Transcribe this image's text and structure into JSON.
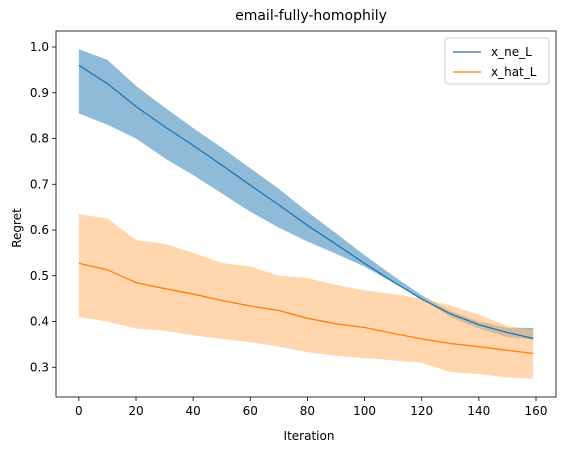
{
  "chart_data": {
    "type": "line",
    "title": "email-fully-homophily",
    "xlabel": "Iteration",
    "ylabel": "Regret",
    "xlim": [
      -8,
      167
    ],
    "ylim": [
      0.235,
      1.035
    ],
    "xticks": [
      0,
      20,
      40,
      60,
      80,
      100,
      120,
      140,
      160
    ],
    "yticks": [
      0.3,
      0.4,
      0.5,
      0.6,
      0.7,
      0.8,
      0.9,
      1.0
    ],
    "grid": false,
    "legend_position": "top-right",
    "series": [
      {
        "name": "x_ne_L",
        "color": "#1f77b4",
        "band_color": "#1f77b4",
        "x": [
          0,
          10,
          20,
          30,
          40,
          50,
          60,
          70,
          80,
          90,
          100,
          110,
          120,
          130,
          140,
          150,
          159
        ],
        "y": [
          0.96,
          0.92,
          0.87,
          0.826,
          0.785,
          0.742,
          0.698,
          0.655,
          0.61,
          0.569,
          0.527,
          0.487,
          0.449,
          0.417,
          0.393,
          0.376,
          0.363
        ],
        "upper": [
          0.995,
          0.972,
          0.915,
          0.868,
          0.823,
          0.78,
          0.735,
          0.69,
          0.64,
          0.593,
          0.545,
          0.5,
          0.457,
          0.423,
          0.4,
          0.386,
          0.386
        ],
        "lower": [
          0.855,
          0.83,
          0.8,
          0.757,
          0.72,
          0.68,
          0.64,
          0.605,
          0.575,
          0.548,
          0.52,
          0.485,
          0.45,
          0.41,
          0.385,
          0.366,
          0.36
        ]
      },
      {
        "name": "x_hat_L",
        "color": "#ff7f0e",
        "band_color": "#ffbb78",
        "x": [
          0,
          10,
          20,
          30,
          40,
          50,
          60,
          70,
          80,
          90,
          100,
          110,
          120,
          130,
          140,
          150,
          159
        ],
        "y": [
          0.527,
          0.513,
          0.485,
          0.472,
          0.46,
          0.446,
          0.434,
          0.424,
          0.407,
          0.395,
          0.387,
          0.374,
          0.362,
          0.352,
          0.345,
          0.337,
          0.33
        ],
        "upper": [
          0.635,
          0.625,
          0.578,
          0.57,
          0.55,
          0.528,
          0.52,
          0.5,
          0.495,
          0.48,
          0.468,
          0.46,
          0.45,
          0.435,
          0.415,
          0.39,
          0.382
        ],
        "lower": [
          0.41,
          0.4,
          0.385,
          0.38,
          0.37,
          0.362,
          0.355,
          0.345,
          0.333,
          0.325,
          0.32,
          0.315,
          0.31,
          0.29,
          0.285,
          0.278,
          0.275
        ]
      }
    ]
  }
}
